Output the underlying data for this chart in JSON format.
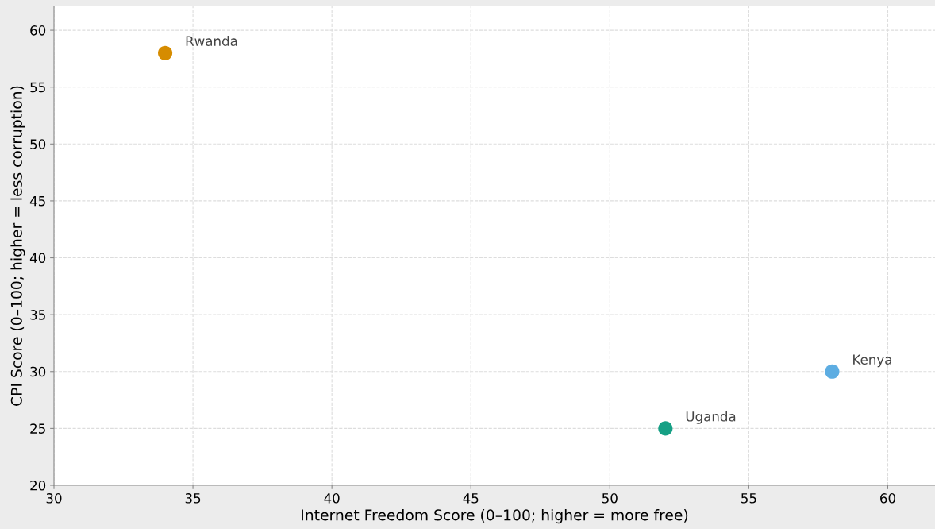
{
  "chart_data": {
    "type": "scatter",
    "xlabel": "Internet Freedom Score (0–100; higher = more free)",
    "ylabel": "CPI Score (0–100; higher = less corruption)",
    "series": [
      {
        "name": "Rwanda",
        "color": "#d68c00",
        "x": [
          34
        ],
        "values": [
          58
        ]
      },
      {
        "name": "Uganda",
        "color": "#16a085",
        "x": [
          52
        ],
        "values": [
          25
        ]
      },
      {
        "name": "Kenya",
        "color": "#5dade2",
        "x": [
          58
        ],
        "values": [
          30
        ]
      }
    ],
    "xlim": [
      30,
      61.7
    ],
    "ylim": [
      20,
      62.1
    ],
    "xticks": [
      30,
      35,
      40,
      45,
      50,
      55,
      60
    ],
    "yticks": [
      20,
      25,
      30,
      35,
      40,
      45,
      50,
      55,
      60
    ],
    "grid": true,
    "marker": "circle",
    "legend": false
  }
}
